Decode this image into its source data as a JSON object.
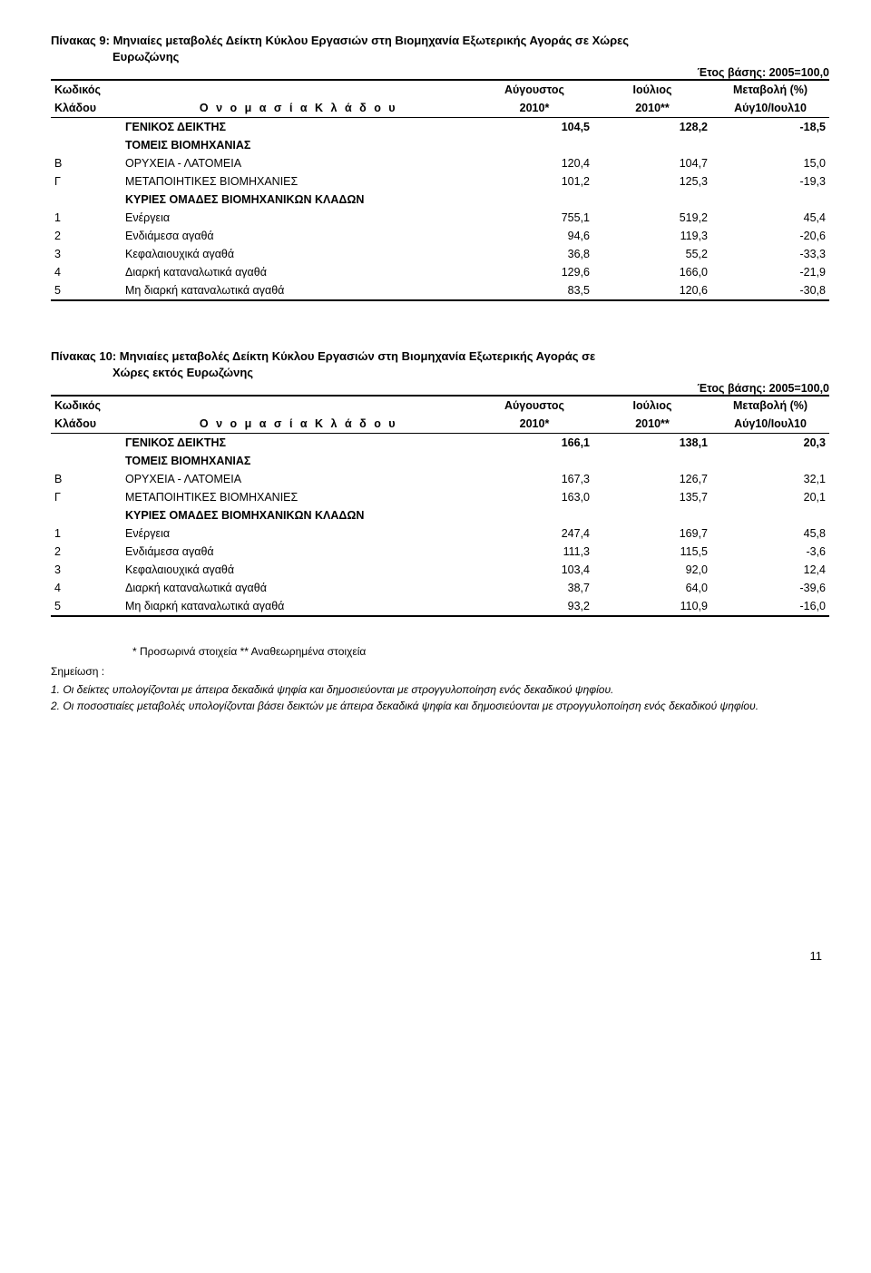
{
  "table9": {
    "title_line1": "Πίνακας 9: Μηνιαίες μεταβολές Δείκτη Κύκλου Εργασιών στη Βιομηχανία Εξωτερικής Αγοράς σε Χώρες",
    "title_line2": "Ευρωζώνης",
    "base_year": "Έτος βάσης: 2005=100,0",
    "head_code": "Κωδικός",
    "head_code2": "Κλάδου",
    "head_name": "Ο ν ο μ α σ ί α    Κ λ ά δ ο υ",
    "head_aug": "Αύγουστος",
    "head_jul": "Ιούλιος",
    "head_change": "Μεταβολή (%)",
    "head_aug2": "2010*",
    "head_jul2": "2010**",
    "head_change2": "Αύγ10/Ιουλ10",
    "rows": [
      {
        "code": "",
        "name": "ΓΕΝΙΚΟΣ ΔΕΙΚΤΗΣ",
        "v1": "104,5",
        "v2": "128,2",
        "v3": "-18,5",
        "section": true
      },
      {
        "code": "",
        "name": "ΤΟΜΕΙΣ ΒΙΟΜΗΧΑΝΙΑΣ",
        "v1": "",
        "v2": "",
        "v3": "",
        "sub": true
      },
      {
        "code": "Β",
        "name": "ΟΡΥΧΕΙΑ - ΛΑΤΟΜΕΙΑ",
        "v1": "120,4",
        "v2": "104,7",
        "v3": "15,0"
      },
      {
        "code": "Γ",
        "name": "ΜΕΤΑΠΟΙΗΤΙΚΕΣ ΒΙΟΜΗΧΑΝΙΕΣ",
        "v1": "101,2",
        "v2": "125,3",
        "v3": "-19,3"
      },
      {
        "code": "",
        "name": "ΚΥΡΙΕΣ ΟΜΑΔΕΣ ΒΙΟΜΗΧΑΝΙΚΩΝ ΚΛΑΔΩΝ",
        "v1": "",
        "v2": "",
        "v3": "",
        "sub": true
      },
      {
        "code": "1",
        "name": "Ενέργεια",
        "v1": "755,1",
        "v2": "519,2",
        "v3": "45,4"
      },
      {
        "code": "2",
        "name": "Ενδιάμεσα αγαθά",
        "v1": "94,6",
        "v2": "119,3",
        "v3": "-20,6"
      },
      {
        "code": "3",
        "name": "Κεφαλαιουχικά αγαθά",
        "v1": "36,8",
        "v2": "55,2",
        "v3": "-33,3"
      },
      {
        "code": "4",
        "name": "Διαρκή καταναλωτικά αγαθά",
        "v1": "129,6",
        "v2": "166,0",
        "v3": "-21,9"
      },
      {
        "code": "5",
        "name": "Μη διαρκή καταναλωτικά αγαθά",
        "v1": "83,5",
        "v2": "120,6",
        "v3": "-30,8",
        "last": true
      }
    ]
  },
  "table10": {
    "title_line1": "Πίνακας 10: Μηνιαίες μεταβολές Δείκτη Κύκλου Εργασιών στη Βιομηχανία Εξωτερικής Αγοράς σε",
    "title_line2": "Χώρες εκτός Ευρωζώνης",
    "base_year": "Έτος βάσης: 2005=100,0",
    "head_code": "Κωδικός",
    "head_code2": "Κλάδου",
    "head_name": "Ο ν ο μ α σ ί α    Κ λ ά δ ο υ",
    "head_aug": "Αύγουστος",
    "head_jul": "Ιούλιος",
    "head_change": "Μεταβολή (%)",
    "head_aug2": "2010*",
    "head_jul2": "2010**",
    "head_change2": "Αύγ10/Ιουλ10",
    "rows": [
      {
        "code": "",
        "name": "ΓΕΝΙΚΟΣ ΔΕΙΚΤΗΣ",
        "v1": "166,1",
        "v2": "138,1",
        "v3": "20,3",
        "section": true
      },
      {
        "code": "",
        "name": "ΤΟΜΕΙΣ ΒΙΟΜΗΧΑΝΙΑΣ",
        "v1": "",
        "v2": "",
        "v3": "",
        "sub": true
      },
      {
        "code": "Β",
        "name": "ΟΡΥΧΕΙΑ - ΛΑΤΟΜΕΙΑ",
        "v1": "167,3",
        "v2": "126,7",
        "v3": "32,1"
      },
      {
        "code": "Γ",
        "name": "ΜΕΤΑΠΟΙΗΤΙΚΕΣ ΒΙΟΜΗΧΑΝΙΕΣ",
        "v1": "163,0",
        "v2": "135,7",
        "v3": "20,1"
      },
      {
        "code": "",
        "name": "ΚΥΡΙΕΣ ΟΜΑΔΕΣ ΒΙΟΜΗΧΑΝΙΚΩΝ ΚΛΑΔΩΝ",
        "v1": "",
        "v2": "",
        "v3": "",
        "sub": true
      },
      {
        "code": "1",
        "name": "Ενέργεια",
        "v1": "247,4",
        "v2": "169,7",
        "v3": "45,8"
      },
      {
        "code": "2",
        "name": "Ενδιάμεσα αγαθά",
        "v1": "111,3",
        "v2": "115,5",
        "v3": "-3,6"
      },
      {
        "code": "3",
        "name": "Κεφαλαιουχικά αγαθά",
        "v1": "103,4",
        "v2": "92,0",
        "v3": "12,4"
      },
      {
        "code": "4",
        "name": "Διαρκή καταναλωτικά αγαθά",
        "v1": "38,7",
        "v2": "64,0",
        "v3": "-39,6"
      },
      {
        "code": "5",
        "name": "Μη διαρκή καταναλωτικά αγαθά",
        "v1": "93,2",
        "v2": "110,9",
        "v3": "-16,0",
        "last": true
      }
    ]
  },
  "footnotes": {
    "provisional": "* Προσωρινά στοιχεία       ** Αναθεωρημένα στοιχεία",
    "note_label": "Σημείωση :",
    "note1": "1.  Οι δείκτες υπολογίζονται με άπειρα δεκαδικά ψηφία και δημοσιεύονται με στρογγυλοποίηση ενός δεκαδικού ψηφίου.",
    "note2": "2.  Οι ποσοστιαίες μεταβολές υπολογίζονται βάσει δεικτών με άπειρα δεκαδικά ψηφία και δημοσιεύονται με στρογγυλοποίηση ενός δεκαδικού ψηφίου."
  },
  "page_number": "11"
}
